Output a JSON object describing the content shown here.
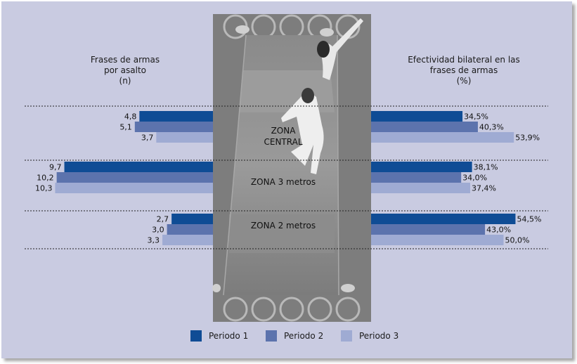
{
  "chart_data": {
    "type": "bar",
    "orientation": "horizontal-butterfly",
    "categories": [
      "ZONA\nCENTRAL",
      "ZONA 3 metros",
      "ZONA 2 metros"
    ],
    "series_names": [
      "Periodo 1",
      "Periodo 2",
      "Periodo 3"
    ],
    "colors": [
      "#0f4c95",
      "#5c73ad",
      "#9fabd3"
    ],
    "left": {
      "title_lines": [
        "Frases de armas",
        "por asalto",
        "(n)"
      ],
      "values": [
        [
          4.8,
          5.1,
          3.7
        ],
        [
          9.7,
          10.2,
          10.3
        ],
        [
          2.7,
          3.0,
          3.3
        ]
      ],
      "labels": [
        [
          "4,8",
          "5,1",
          "3,7"
        ],
        [
          "9,7",
          "10,2",
          "10,3"
        ],
        [
          "2,7",
          "3,0",
          "3,3"
        ]
      ]
    },
    "right": {
      "title_lines": [
        "Efectividad bilateral en las",
        "frases de armas",
        "(%)"
      ],
      "values": [
        [
          34.5,
          40.3,
          53.9
        ],
        [
          38.1,
          34.0,
          37.4
        ],
        [
          54.5,
          43.0,
          50.0
        ]
      ],
      "labels": [
        [
          "34,5%",
          "40,3%",
          "53,9%"
        ],
        [
          "38,1%",
          "34,0%",
          "37,4%"
        ],
        [
          "54,5%",
          "43,0%",
          "50,0%"
        ]
      ]
    },
    "legend_position": "bottom",
    "background_image": "fencing-piste-photo"
  }
}
